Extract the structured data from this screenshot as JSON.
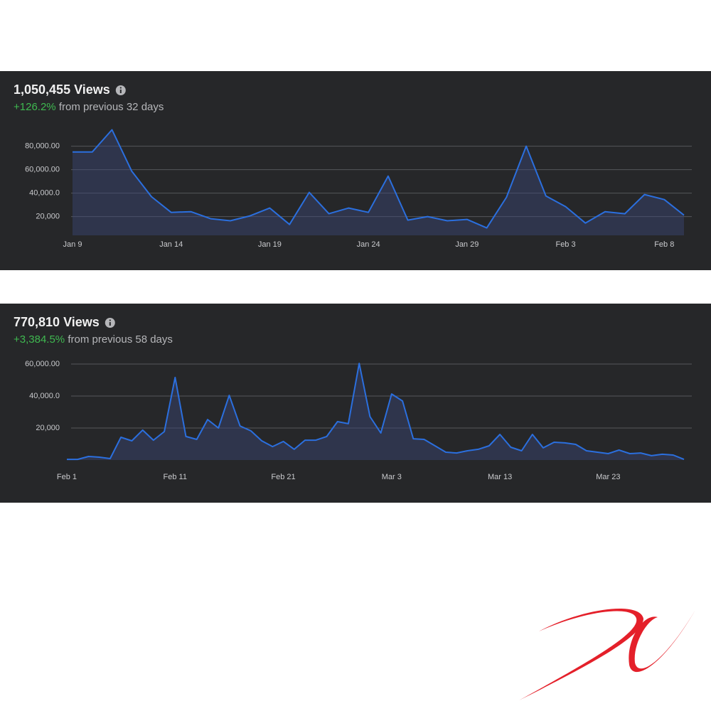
{
  "chart_data": [
    {
      "type": "line",
      "title": "1,050,455 Views",
      "change": "+126.2%",
      "change_text": "from previous 32 days",
      "categories": [
        "Jan 9",
        null,
        null,
        null,
        null,
        "Jan 14",
        null,
        null,
        null,
        null,
        "Jan 19",
        null,
        null,
        null,
        null,
        "Jan 24",
        null,
        null,
        null,
        null,
        "Jan 29",
        null,
        null,
        null,
        null,
        "Feb 3",
        null,
        null,
        null,
        null,
        "Feb 8",
        null
      ],
      "values": [
        75000,
        75000,
        94000,
        58800,
        37000,
        23600,
        24200,
        18200,
        16400,
        20600,
        27300,
        13300,
        40600,
        22400,
        27300,
        23600,
        54500,
        17000,
        20000,
        16400,
        17600,
        10300,
        36400,
        80000,
        37600,
        28500,
        14500,
        24200,
        22400,
        38800,
        34500,
        21200
      ],
      "color": "#2b6fde",
      "ylim": [
        4000,
        100000
      ],
      "yticks": [
        {
          "value": 20000,
          "label": "20,000"
        },
        {
          "value": 40000,
          "label": "40,000.0"
        },
        {
          "value": 60000,
          "label": "60,000.00"
        },
        {
          "value": 80000,
          "label": "80,000.00"
        }
      ],
      "grid": true
    },
    {
      "type": "line",
      "title": "770,810 Views",
      "change": "+3,384.5%",
      "change_text": "from previous 58 days",
      "categories": [
        "Feb 1",
        null,
        null,
        null,
        null,
        null,
        null,
        null,
        null,
        null,
        "Feb 11",
        null,
        null,
        null,
        null,
        null,
        null,
        null,
        null,
        null,
        "Feb 21",
        null,
        null,
        null,
        null,
        null,
        null,
        null,
        null,
        null,
        "Mar 3",
        null,
        null,
        null,
        null,
        null,
        null,
        null,
        null,
        null,
        "Mar 13",
        null,
        null,
        null,
        null,
        null,
        null,
        null,
        null,
        null,
        "Mar 23",
        null,
        null,
        null,
        null,
        null,
        null,
        null
      ],
      "values": [
        400,
        400,
        2200,
        1800,
        900,
        14200,
        12000,
        18700,
        12400,
        17800,
        51600,
        14700,
        12900,
        25300,
        20000,
        40400,
        21300,
        18200,
        12000,
        8400,
        11600,
        6700,
        12400,
        12400,
        14700,
        24000,
        22700,
        60400,
        27100,
        16900,
        41300,
        36900,
        13300,
        12900,
        8900,
        4900,
        4400,
        5800,
        6700,
        8900,
        16000,
        8000,
        5800,
        16000,
        7600,
        11100,
        10700,
        9800,
        5800,
        4900,
        4000,
        6200,
        4000,
        4400,
        2700,
        3600,
        3100,
        400
      ],
      "color": "#2b6fde",
      "ylim": [
        0,
        64000
      ],
      "yticks": [
        {
          "value": 20000,
          "label": "20,000"
        },
        {
          "value": 40000,
          "label": "40,000.0"
        },
        {
          "value": 60000,
          "label": "60,000.00"
        }
      ],
      "grid": true
    }
  ]
}
